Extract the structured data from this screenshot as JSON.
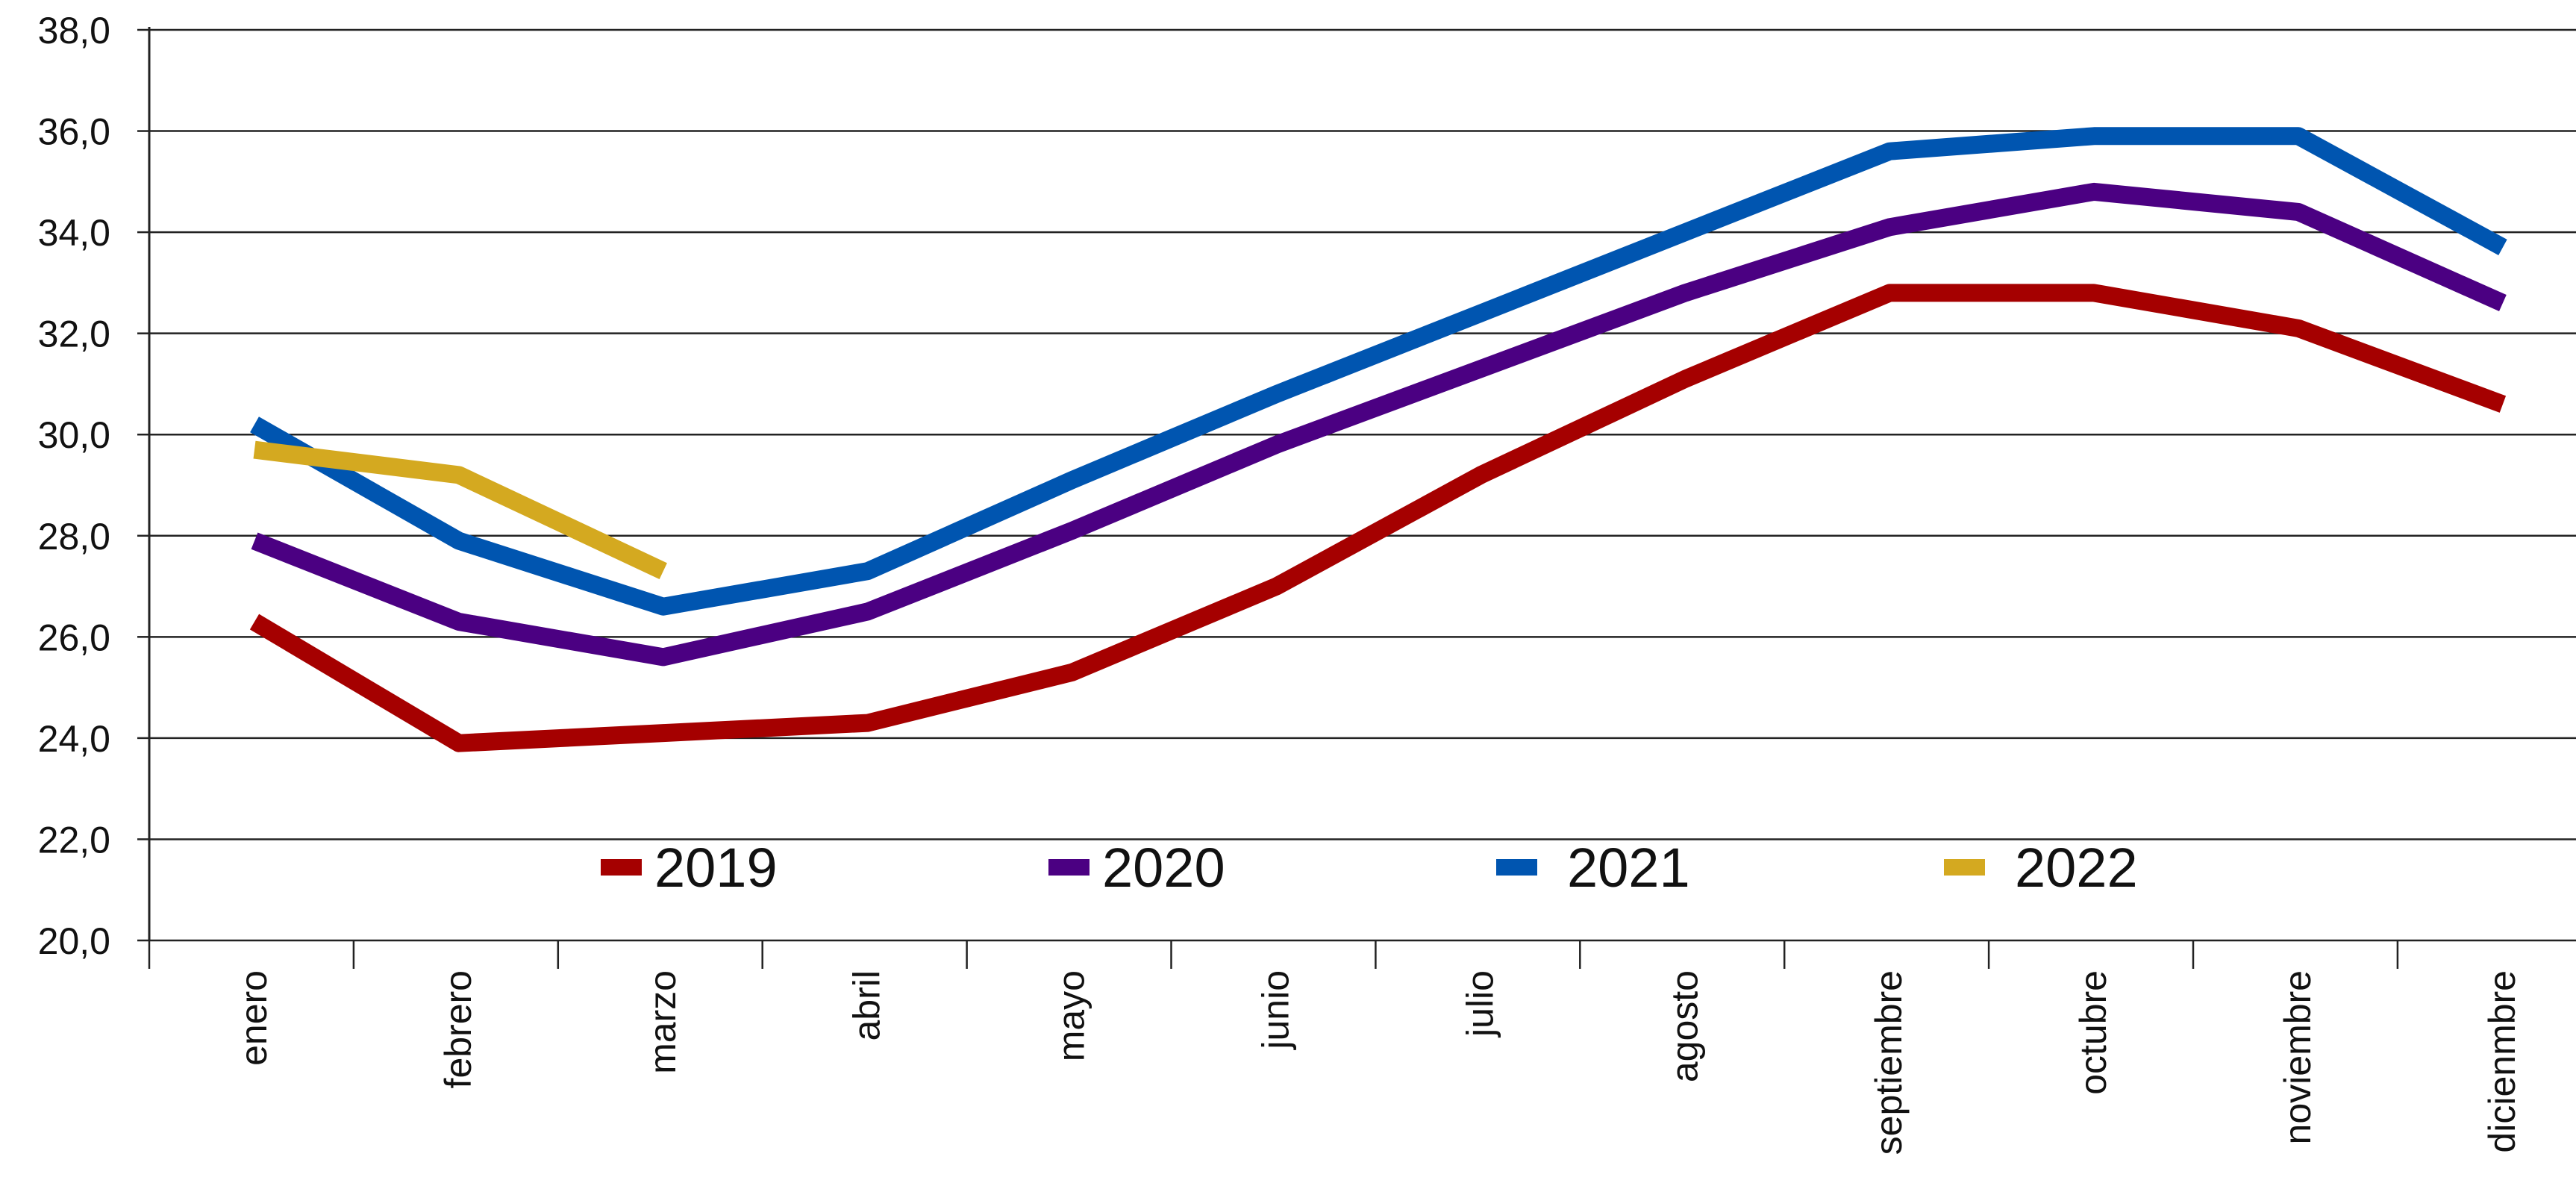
{
  "chart_data": {
    "type": "line",
    "title": "",
    "xlabel": "",
    "ylabel": "",
    "categories": [
      "enero",
      "febrero",
      "marzo",
      "abril",
      "mayo",
      "junio",
      "julio",
      "agosto",
      "septiembre",
      "octubre",
      "noviembre",
      "diciembre"
    ],
    "category_labels": [
      "enero",
      "febrero",
      "marzo",
      "abril",
      "mayo",
      "junio",
      "julio",
      "agosto",
      "septiembre",
      "octubre",
      "noviembre",
      "dicienmbre"
    ],
    "ylim": [
      20,
      38
    ],
    "yticks": [
      20,
      22,
      24,
      26,
      28,
      30,
      32,
      34,
      36,
      38
    ],
    "ytick_labels": [
      "20,0",
      "22,0",
      "24,0",
      "26,0",
      "28,0",
      "30,0",
      "32,0",
      "34,0",
      "36,0",
      "38,0"
    ],
    "grid": "horizontal",
    "legend_position": "bottom-center",
    "series": [
      {
        "name": "2019",
        "color": "#A50000",
        "values": [
          26.3,
          23.9,
          24.1,
          24.3,
          25.3,
          27.0,
          29.2,
          31.1,
          32.8,
          32.8,
          32.1,
          30.6
        ]
      },
      {
        "name": "2020",
        "color": "#4B0082",
        "values": [
          27.9,
          26.3,
          25.6,
          26.5,
          28.1,
          29.8,
          31.3,
          32.8,
          34.1,
          34.8,
          34.4,
          32.6
        ]
      },
      {
        "name": "2021",
        "color": "#0055B0",
        "values": [
          30.2,
          27.9,
          26.6,
          27.3,
          29.1,
          30.8,
          32.4,
          34.0,
          35.6,
          35.9,
          35.9,
          33.7
        ]
      },
      {
        "name": "2022",
        "color": "#D4A920",
        "values": [
          29.7,
          29.2,
          27.3,
          null,
          null,
          null,
          null,
          null,
          null,
          null,
          null,
          null
        ]
      }
    ]
  }
}
